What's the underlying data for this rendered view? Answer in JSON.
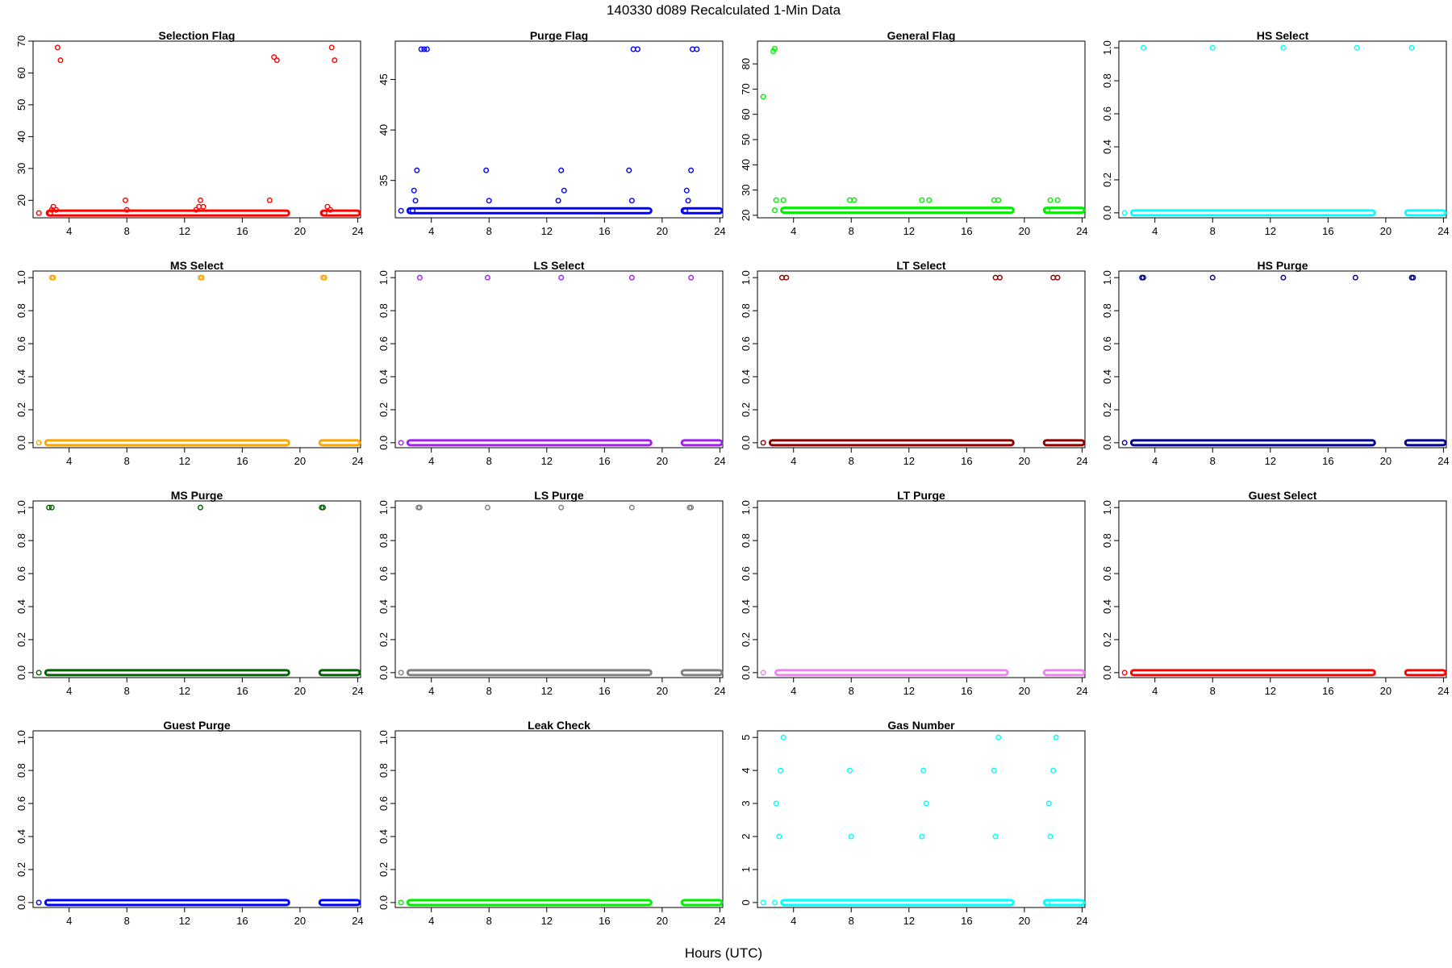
{
  "figure": {
    "title": "140330    d089    Recalculated 1-Min Data",
    "xlabel": "Hours (UTC)"
  },
  "chart_data": [
    {
      "type": "scatter",
      "title": "Selection Flag",
      "color": "#ff0000",
      "xlim": [
        1.5,
        24.2
      ],
      "ylim": [
        14.5,
        70
      ],
      "yticks": [
        20,
        30,
        40,
        50,
        60,
        70
      ],
      "xticks": [
        4,
        8,
        12,
        16,
        20,
        24
      ],
      "points": [
        [
          1.9,
          16
        ],
        [
          2.7,
          16
        ],
        [
          2.8,
          17
        ],
        [
          2.9,
          18
        ],
        [
          3.1,
          17
        ],
        [
          3.2,
          68
        ],
        [
          3.4,
          64
        ],
        [
          7.9,
          20
        ],
        [
          8.0,
          17
        ],
        [
          12.8,
          17
        ],
        [
          13.0,
          18
        ],
        [
          13.1,
          20
        ],
        [
          13.3,
          18
        ],
        [
          17.9,
          20
        ],
        [
          18.2,
          65
        ],
        [
          18.4,
          64
        ],
        [
          21.7,
          16
        ],
        [
          21.9,
          18
        ],
        [
          22.1,
          17
        ],
        [
          22.2,
          68
        ],
        [
          22.4,
          64
        ]
      ],
      "runs": [
        [
          2.6,
          19.1,
          16
        ],
        [
          21.6,
          24.0,
          16
        ]
      ]
    },
    {
      "type": "scatter",
      "title": "Purge Flag",
      "color": "#0000ff",
      "xlim": [
        1.5,
        24.2
      ],
      "ylim": [
        31.3,
        48.8
      ],
      "yticks": [
        35,
        40,
        45
      ],
      "xticks": [
        4,
        8,
        12,
        16,
        20,
        24
      ],
      "points": [
        [
          1.9,
          32
        ],
        [
          2.7,
          32
        ],
        [
          2.8,
          34
        ],
        [
          2.9,
          33
        ],
        [
          3.0,
          36
        ],
        [
          3.3,
          48
        ],
        [
          3.5,
          48
        ],
        [
          3.7,
          48
        ],
        [
          7.8,
          36
        ],
        [
          8.0,
          33
        ],
        [
          12.8,
          33
        ],
        [
          13.0,
          36
        ],
        [
          13.2,
          34
        ],
        [
          17.7,
          36
        ],
        [
          17.9,
          33
        ],
        [
          18.0,
          48
        ],
        [
          18.3,
          48
        ],
        [
          21.6,
          32
        ],
        [
          21.7,
          34
        ],
        [
          21.8,
          33
        ],
        [
          22.0,
          36
        ],
        [
          22.1,
          48
        ],
        [
          22.4,
          48
        ]
      ],
      "runs": [
        [
          2.5,
          19.1,
          32
        ],
        [
          21.5,
          24.0,
          32
        ]
      ]
    },
    {
      "type": "scatter",
      "title": "General Flag",
      "color": "#00ee00",
      "xlim": [
        1.5,
        24.2
      ],
      "ylim": [
        19,
        89
      ],
      "yticks": [
        20,
        30,
        40,
        50,
        60,
        70,
        80
      ],
      "xticks": [
        4,
        8,
        12,
        16,
        20,
        24
      ],
      "points": [
        [
          1.9,
          67
        ],
        [
          2.6,
          85
        ],
        [
          2.7,
          86
        ],
        [
          2.7,
          22
        ],
        [
          2.8,
          26
        ],
        [
          3.3,
          26
        ],
        [
          7.9,
          26
        ],
        [
          8.2,
          26
        ],
        [
          12.9,
          26
        ],
        [
          13.4,
          26
        ],
        [
          17.9,
          26
        ],
        [
          18.2,
          26
        ],
        [
          21.6,
          22
        ],
        [
          21.8,
          26
        ],
        [
          22.3,
          26
        ]
      ],
      "runs": [
        [
          3.3,
          19.1,
          22
        ],
        [
          21.5,
          24.0,
          22
        ]
      ]
    },
    {
      "type": "scatter",
      "title": "HS Select",
      "color": "#00ffff",
      "xlim": [
        1.5,
        24.2
      ],
      "ylim": [
        -0.03,
        1.04
      ],
      "yticks": [
        0.0,
        0.2,
        0.4,
        0.6,
        0.8,
        1.0
      ],
      "xticks": [
        4,
        8,
        12,
        16,
        20,
        24
      ],
      "points": [
        [
          1.9,
          0
        ],
        [
          3.2,
          1
        ],
        [
          8.0,
          1
        ],
        [
          12.9,
          1
        ],
        [
          18.0,
          1
        ],
        [
          21.8,
          1
        ]
      ],
      "runs": [
        [
          2.5,
          19.1,
          0
        ],
        [
          21.5,
          24.0,
          0
        ]
      ]
    },
    {
      "type": "scatter",
      "title": "MS Select",
      "color": "#ffa500",
      "xlim": [
        1.5,
        24.2
      ],
      "ylim": [
        -0.03,
        1.04
      ],
      "yticks": [
        0.0,
        0.2,
        0.4,
        0.6,
        0.8,
        1.0
      ],
      "xticks": [
        4,
        8,
        12,
        16,
        20,
        24
      ],
      "points": [
        [
          1.9,
          0
        ],
        [
          2.8,
          1
        ],
        [
          2.9,
          1
        ],
        [
          13.1,
          1
        ],
        [
          13.2,
          1
        ],
        [
          21.6,
          1
        ],
        [
          21.7,
          1
        ]
      ],
      "runs": [
        [
          2.5,
          19.1,
          0
        ],
        [
          21.5,
          24.0,
          0
        ]
      ]
    },
    {
      "type": "scatter",
      "title": "LS Select",
      "color": "#a020f0",
      "xlim": [
        1.5,
        24.2
      ],
      "ylim": [
        -0.03,
        1.04
      ],
      "yticks": [
        0.0,
        0.2,
        0.4,
        0.6,
        0.8,
        1.0
      ],
      "xticks": [
        4,
        8,
        12,
        16,
        20,
        24
      ],
      "points": [
        [
          1.9,
          0
        ],
        [
          3.2,
          1
        ],
        [
          7.9,
          1
        ],
        [
          13.0,
          1
        ],
        [
          17.9,
          1
        ],
        [
          22.0,
          1
        ]
      ],
      "runs": [
        [
          2.5,
          19.1,
          0
        ],
        [
          21.5,
          24.0,
          0
        ]
      ]
    },
    {
      "type": "scatter",
      "title": "LT Select",
      "color": "#8b0000",
      "xlim": [
        1.5,
        24.2
      ],
      "ylim": [
        -0.03,
        1.04
      ],
      "yticks": [
        0.0,
        0.2,
        0.4,
        0.6,
        0.8,
        1.0
      ],
      "xticks": [
        4,
        8,
        12,
        16,
        20,
        24
      ],
      "points": [
        [
          1.9,
          0
        ],
        [
          3.2,
          1
        ],
        [
          3.5,
          1
        ],
        [
          18.0,
          1
        ],
        [
          18.3,
          1
        ],
        [
          22.0,
          1
        ],
        [
          22.3,
          1
        ]
      ],
      "runs": [
        [
          2.5,
          19.1,
          0
        ],
        [
          21.5,
          24.0,
          0
        ]
      ]
    },
    {
      "type": "scatter",
      "title": "HS Purge",
      "color": "#00008b",
      "xlim": [
        1.5,
        24.2
      ],
      "ylim": [
        -0.03,
        1.04
      ],
      "yticks": [
        0.0,
        0.2,
        0.4,
        0.6,
        0.8,
        1.0
      ],
      "xticks": [
        4,
        8,
        12,
        16,
        20,
        24
      ],
      "points": [
        [
          1.9,
          0
        ],
        [
          3.1,
          1
        ],
        [
          3.2,
          1
        ],
        [
          8.0,
          1
        ],
        [
          12.9,
          1
        ],
        [
          17.9,
          1
        ],
        [
          21.8,
          1
        ],
        [
          21.9,
          1
        ]
      ],
      "runs": [
        [
          2.5,
          19.1,
          0
        ],
        [
          21.5,
          24.0,
          0
        ]
      ]
    },
    {
      "type": "scatter",
      "title": "MS Purge",
      "color": "#006400",
      "xlim": [
        1.5,
        24.2
      ],
      "ylim": [
        -0.03,
        1.04
      ],
      "yticks": [
        0.0,
        0.2,
        0.4,
        0.6,
        0.8,
        1.0
      ],
      "xticks": [
        4,
        8,
        12,
        16,
        20,
        24
      ],
      "points": [
        [
          1.9,
          0
        ],
        [
          2.6,
          1
        ],
        [
          2.8,
          1
        ],
        [
          13.1,
          1
        ],
        [
          21.5,
          1
        ],
        [
          21.6,
          1
        ]
      ],
      "runs": [
        [
          2.5,
          19.1,
          0
        ],
        [
          21.5,
          24.0,
          0
        ]
      ]
    },
    {
      "type": "scatter",
      "title": "LS Purge",
      "color": "#808080",
      "xlim": [
        1.5,
        24.2
      ],
      "ylim": [
        -0.03,
        1.04
      ],
      "yticks": [
        0.0,
        0.2,
        0.4,
        0.6,
        0.8,
        1.0
      ],
      "xticks": [
        4,
        8,
        12,
        16,
        20,
        24
      ],
      "points": [
        [
          1.9,
          0
        ],
        [
          3.1,
          1
        ],
        [
          3.2,
          1
        ],
        [
          7.9,
          1
        ],
        [
          13.0,
          1
        ],
        [
          17.9,
          1
        ],
        [
          21.9,
          1
        ],
        [
          22.0,
          1
        ]
      ],
      "runs": [
        [
          2.5,
          19.1,
          0
        ],
        [
          21.5,
          24.0,
          0
        ]
      ]
    },
    {
      "type": "scatter",
      "title": "LT Purge",
      "color": "#ee82ee",
      "xlim": [
        1.5,
        24.2
      ],
      "ylim": [
        -0.03,
        1.04
      ],
      "yticks": [
        0.0,
        0.2,
        0.4,
        0.6,
        0.8,
        1.0
      ],
      "xticks": [
        4,
        8,
        12,
        16,
        20,
        24
      ],
      "points": [
        [
          1.9,
          0
        ]
      ],
      "runs": [
        [
          2.9,
          18.7,
          0
        ],
        [
          21.5,
          24.0,
          0
        ]
      ]
    },
    {
      "type": "scatter",
      "title": "Guest Select",
      "color": "#ff0000",
      "xlim": [
        1.5,
        24.2
      ],
      "ylim": [
        -0.03,
        1.04
      ],
      "yticks": [
        0.0,
        0.2,
        0.4,
        0.6,
        0.8,
        1.0
      ],
      "xticks": [
        4,
        8,
        12,
        16,
        20,
        24
      ],
      "points": [
        [
          1.9,
          0
        ]
      ],
      "runs": [
        [
          2.5,
          19.1,
          0
        ],
        [
          21.5,
          24.0,
          0
        ]
      ]
    },
    {
      "type": "scatter",
      "title": "Guest Purge",
      "color": "#0000ff",
      "xlim": [
        1.5,
        24.2
      ],
      "ylim": [
        -0.03,
        1.04
      ],
      "yticks": [
        0.0,
        0.2,
        0.4,
        0.6,
        0.8,
        1.0
      ],
      "xticks": [
        4,
        8,
        12,
        16,
        20,
        24
      ],
      "points": [
        [
          1.9,
          0
        ]
      ],
      "runs": [
        [
          2.5,
          19.1,
          0
        ],
        [
          21.5,
          24.0,
          0
        ]
      ]
    },
    {
      "type": "scatter",
      "title": "Leak Check",
      "color": "#00ee00",
      "xlim": [
        1.5,
        24.2
      ],
      "ylim": [
        -0.03,
        1.04
      ],
      "yticks": [
        0.0,
        0.2,
        0.4,
        0.6,
        0.8,
        1.0
      ],
      "xticks": [
        4,
        8,
        12,
        16,
        20,
        24
      ],
      "points": [
        [
          1.9,
          0
        ]
      ],
      "runs": [
        [
          2.5,
          19.1,
          0
        ],
        [
          21.5,
          24.0,
          0
        ]
      ]
    },
    {
      "type": "scatter",
      "title": "Gas Number",
      "color": "#00ffff",
      "xlim": [
        1.5,
        24.2
      ],
      "ylim": [
        -0.15,
        5.2
      ],
      "yticks": [
        0,
        1,
        2,
        3,
        4,
        5
      ],
      "xticks": [
        4,
        8,
        12,
        16,
        20,
        24
      ],
      "points": [
        [
          1.9,
          0
        ],
        [
          2.7,
          0
        ],
        [
          2.8,
          3
        ],
        [
          3.0,
          2
        ],
        [
          3.1,
          4
        ],
        [
          3.3,
          5
        ],
        [
          7.9,
          4
        ],
        [
          8.0,
          2
        ],
        [
          12.9,
          2
        ],
        [
          13.0,
          4
        ],
        [
          13.2,
          3
        ],
        [
          17.9,
          4
        ],
        [
          18.0,
          2
        ],
        [
          18.2,
          5
        ],
        [
          21.6,
          0
        ],
        [
          21.7,
          3
        ],
        [
          21.8,
          2
        ],
        [
          22.0,
          4
        ],
        [
          22.2,
          5
        ]
      ],
      "runs": [
        [
          3.3,
          19.1,
          0
        ],
        [
          21.5,
          24.0,
          0
        ]
      ]
    }
  ]
}
